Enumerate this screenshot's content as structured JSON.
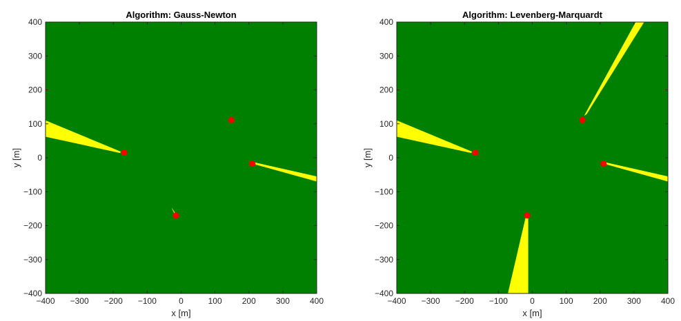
{
  "colors": {
    "converged": "#008000",
    "diverged": "#ffff00",
    "anchor": "#ff0000",
    "axis": "#262626"
  },
  "chart_data": [
    {
      "type": "heatmap",
      "title": "Algorithm: Gauss-Newton",
      "xlabel": "x [m]",
      "ylabel": "y [m]",
      "xlim": [
        -400,
        400
      ],
      "ylim": [
        -400,
        400
      ],
      "xticks": [
        -400,
        -300,
        -200,
        -100,
        0,
        100,
        200,
        300,
        400
      ],
      "yticks": [
        -400,
        -300,
        -200,
        -100,
        0,
        100,
        200,
        300,
        400
      ],
      "grid": false,
      "background_class": "converged",
      "anchors": [
        {
          "x": 148,
          "y": 111
        },
        {
          "x": -168,
          "y": 15
        },
        {
          "x": 210,
          "y": -18
        },
        {
          "x": -15,
          "y": -170
        }
      ],
      "diverged_regions": [
        [
          [
            -400,
            110
          ],
          [
            -400,
            62
          ],
          [
            -180,
            14
          ],
          [
            -178,
            18
          ]
        ],
        [
          [
            218,
            -14
          ],
          [
            400,
            -55
          ],
          [
            400,
            -70
          ],
          [
            220,
            -20
          ]
        ],
        [
          [
            -28,
            -148
          ],
          [
            -26,
            -150
          ],
          [
            -18,
            -162
          ],
          [
            -20,
            -164
          ]
        ]
      ]
    },
    {
      "type": "heatmap",
      "title": "Algorithm: Levenberg-Marquardt",
      "xlabel": "x [m]",
      "ylabel": "y [m]",
      "xlim": [
        -400,
        400
      ],
      "ylim": [
        -400,
        400
      ],
      "xticks": [
        -400,
        -300,
        -200,
        -100,
        0,
        100,
        200,
        300,
        400
      ],
      "yticks": [
        -400,
        -300,
        -200,
        -100,
        0,
        100,
        200,
        300,
        400
      ],
      "grid": false,
      "background_class": "converged",
      "anchors": [
        {
          "x": 148,
          "y": 111
        },
        {
          "x": -168,
          "y": 15
        },
        {
          "x": 210,
          "y": -18
        },
        {
          "x": -15,
          "y": -170
        }
      ],
      "diverged_regions": [
        [
          [
            -400,
            110
          ],
          [
            -400,
            62
          ],
          [
            -180,
            14
          ],
          [
            -178,
            18
          ]
        ],
        [
          [
            218,
            -14
          ],
          [
            400,
            -55
          ],
          [
            400,
            -70
          ],
          [
            220,
            -20
          ]
        ],
        [
          [
            153,
            124
          ],
          [
            305,
            400
          ],
          [
            330,
            400
          ],
          [
            160,
            128
          ]
        ],
        [
          [
            -18,
            -168
          ],
          [
            -72,
            -400
          ],
          [
            -12,
            -400
          ],
          [
            -12,
            -168
          ]
        ]
      ]
    }
  ]
}
